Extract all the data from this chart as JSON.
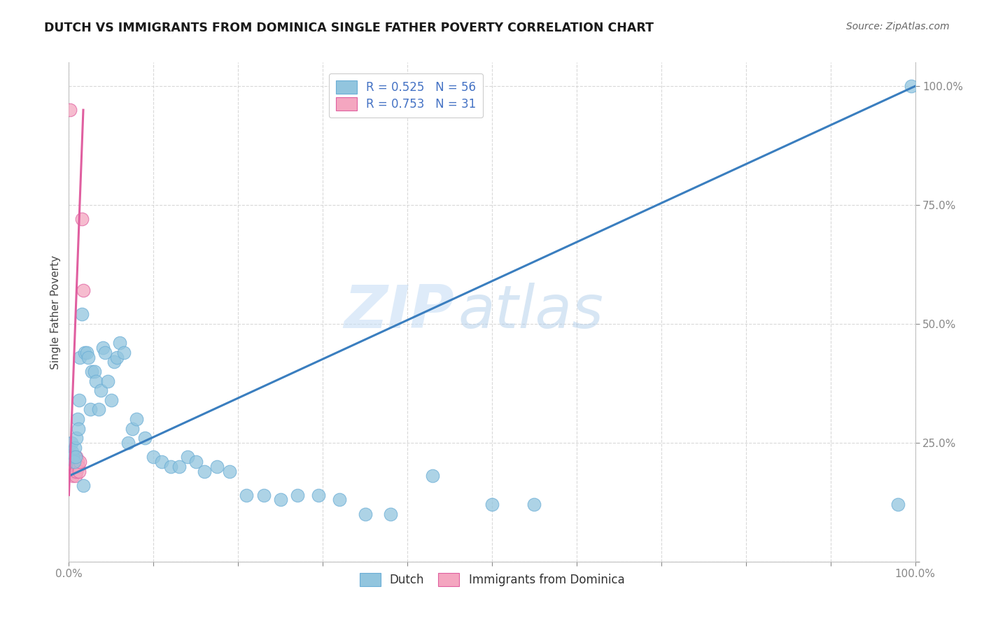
{
  "title": "DUTCH VS IMMIGRANTS FROM DOMINICA SINGLE FATHER POVERTY CORRELATION CHART",
  "source": "Source: ZipAtlas.com",
  "ylabel": "Single Father Poverty",
  "background_color": "#ffffff",
  "watermark_zip": "ZIP",
  "watermark_atlas": "atlas",
  "dutch_color": "#92c5de",
  "dutch_edge_color": "#6baed6",
  "dominica_color": "#f4a6c0",
  "dominica_edge_color": "#e05fa0",
  "dutch_line_color": "#3a7ebf",
  "dominica_line_color": "#e05fa0",
  "dutch_x": [
    0.003,
    0.004,
    0.005,
    0.006,
    0.007,
    0.008,
    0.009,
    0.01,
    0.011,
    0.012,
    0.013,
    0.015,
    0.017,
    0.019,
    0.021,
    0.023,
    0.025,
    0.027,
    0.03,
    0.032,
    0.035,
    0.038,
    0.04,
    0.043,
    0.046,
    0.05,
    0.053,
    0.057,
    0.06,
    0.065,
    0.07,
    0.075,
    0.08,
    0.09,
    0.1,
    0.11,
    0.12,
    0.13,
    0.14,
    0.15,
    0.16,
    0.175,
    0.19,
    0.21,
    0.23,
    0.25,
    0.27,
    0.295,
    0.32,
    0.35,
    0.38,
    0.43,
    0.5,
    0.55,
    0.98,
    0.995
  ],
  "dutch_y": [
    0.25,
    0.23,
    0.22,
    0.21,
    0.24,
    0.22,
    0.26,
    0.3,
    0.28,
    0.34,
    0.43,
    0.52,
    0.16,
    0.44,
    0.44,
    0.43,
    0.32,
    0.4,
    0.4,
    0.38,
    0.32,
    0.36,
    0.45,
    0.44,
    0.38,
    0.34,
    0.42,
    0.43,
    0.46,
    0.44,
    0.25,
    0.28,
    0.3,
    0.26,
    0.22,
    0.21,
    0.2,
    0.2,
    0.22,
    0.21,
    0.19,
    0.2,
    0.19,
    0.14,
    0.14,
    0.13,
    0.14,
    0.14,
    0.13,
    0.1,
    0.1,
    0.18,
    0.12,
    0.12,
    0.12,
    1.0
  ],
  "dominica_x": [
    0.0005,
    0.001,
    0.001,
    0.001,
    0.002,
    0.002,
    0.002,
    0.003,
    0.003,
    0.003,
    0.004,
    0.004,
    0.004,
    0.005,
    0.005,
    0.005,
    0.006,
    0.006,
    0.006,
    0.007,
    0.007,
    0.008,
    0.008,
    0.009,
    0.009,
    0.01,
    0.011,
    0.012,
    0.013,
    0.015,
    0.017
  ],
  "dominica_y": [
    0.21,
    0.95,
    0.22,
    0.2,
    0.22,
    0.21,
    0.19,
    0.22,
    0.21,
    0.2,
    0.22,
    0.21,
    0.19,
    0.22,
    0.2,
    0.18,
    0.22,
    0.21,
    0.2,
    0.22,
    0.19,
    0.21,
    0.18,
    0.22,
    0.19,
    0.21,
    0.2,
    0.19,
    0.21,
    0.72,
    0.57
  ],
  "xlim": [
    0.0,
    1.0
  ],
  "ylim": [
    0.0,
    1.05
  ],
  "dutch_line_x": [
    0.0,
    1.0
  ],
  "dutch_line_y": [
    0.18,
    1.0
  ],
  "dominica_line_x": [
    0.0,
    0.017
  ],
  "dominica_line_y": [
    0.14,
    0.95
  ]
}
